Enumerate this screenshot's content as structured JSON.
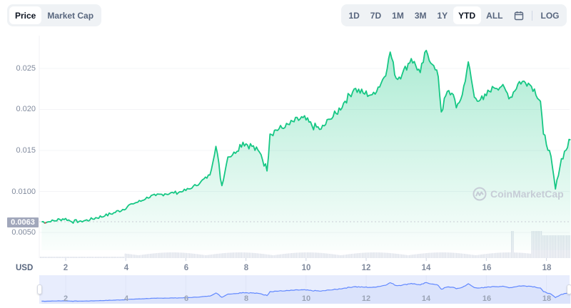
{
  "toggle": {
    "items": [
      {
        "label": "Price",
        "active": true
      },
      {
        "label": "Market Cap",
        "active": false
      }
    ]
  },
  "range": {
    "items": [
      {
        "label": "1D",
        "active": false
      },
      {
        "label": "7D",
        "active": false
      },
      {
        "label": "1M",
        "active": false
      },
      {
        "label": "3M",
        "active": false
      },
      {
        "label": "1Y",
        "active": false
      },
      {
        "label": "YTD",
        "active": true
      },
      {
        "label": "ALL",
        "active": false
      }
    ],
    "calendar_icon": "calendar-icon",
    "log_label": "LOG"
  },
  "axis": {
    "currency": "USD",
    "current_price": "0.0063"
  },
  "watermark": {
    "text": "CoinMarketCap",
    "icon": "coinmarketcap-logo-icon"
  },
  "colors": {
    "line_up": "#16c784",
    "line_down": "#ea3943",
    "fill_top": "#16c784",
    "volume": "#cfd6e4",
    "navigator_line": "#6188ff",
    "navigator_fill": "#e8edfd"
  },
  "chart_data": {
    "type": "area",
    "title": "",
    "xlabel": "",
    "ylabel": "USD",
    "x_ticks": [
      "2",
      "4",
      "6",
      "8",
      "10",
      "12",
      "14",
      "16",
      "18"
    ],
    "y_ticks": [
      "0.0050",
      "0.0100",
      "0.015",
      "0.020",
      "0.025"
    ],
    "ylim": [
      0.0035,
      0.028
    ],
    "xlim": [
      1.2,
      18.8
    ],
    "baseline": 0.0063,
    "grid": true,
    "legend": null,
    "series": [
      {
        "name": "Price",
        "x": [
          1.2,
          1.5,
          1.8,
          2.0,
          2.2,
          2.5,
          2.8,
          3.0,
          3.3,
          3.6,
          3.9,
          4.2,
          4.5,
          4.7,
          5.0,
          5.3,
          5.6,
          5.9,
          6.2,
          6.5,
          6.8,
          7.0,
          7.2,
          7.4,
          7.6,
          7.9,
          8.2,
          8.5,
          8.7,
          8.8,
          9.0,
          9.3,
          9.6,
          9.9,
          10.2,
          10.5,
          10.8,
          11.0,
          11.3,
          11.6,
          11.9,
          12.2,
          12.5,
          12.7,
          12.8,
          13.0,
          13.2,
          13.5,
          13.8,
          14.0,
          14.2,
          14.4,
          14.5,
          14.7,
          14.9,
          15.0,
          15.2,
          15.4,
          15.6,
          15.9,
          16.2,
          16.5,
          16.8,
          17.1,
          17.4,
          17.6,
          17.8,
          17.9,
          18.1,
          18.3,
          18.5,
          18.8
        ],
        "values": [
          0.0063,
          0.0063,
          0.0066,
          0.0067,
          0.0063,
          0.0064,
          0.0065,
          0.0068,
          0.007,
          0.0074,
          0.0078,
          0.0085,
          0.0088,
          0.0093,
          0.0095,
          0.0097,
          0.0098,
          0.01,
          0.0104,
          0.0112,
          0.012,
          0.0155,
          0.0107,
          0.0142,
          0.0148,
          0.016,
          0.0155,
          0.0145,
          0.0125,
          0.017,
          0.0175,
          0.0178,
          0.0185,
          0.019,
          0.018,
          0.0176,
          0.0188,
          0.0195,
          0.021,
          0.0225,
          0.022,
          0.0218,
          0.0232,
          0.025,
          0.027,
          0.0238,
          0.0243,
          0.0262,
          0.0245,
          0.0272,
          0.0255,
          0.024,
          0.0197,
          0.0222,
          0.0218,
          0.0202,
          0.0218,
          0.0258,
          0.0215,
          0.0212,
          0.0228,
          0.0228,
          0.0215,
          0.0234,
          0.0232,
          0.0225,
          0.021,
          0.017,
          0.015,
          0.0103,
          0.014,
          0.0163
        ]
      },
      {
        "name": "Volume",
        "type": "bar",
        "note": "relative bar heights, spikes near 17 and 18"
      }
    ]
  }
}
